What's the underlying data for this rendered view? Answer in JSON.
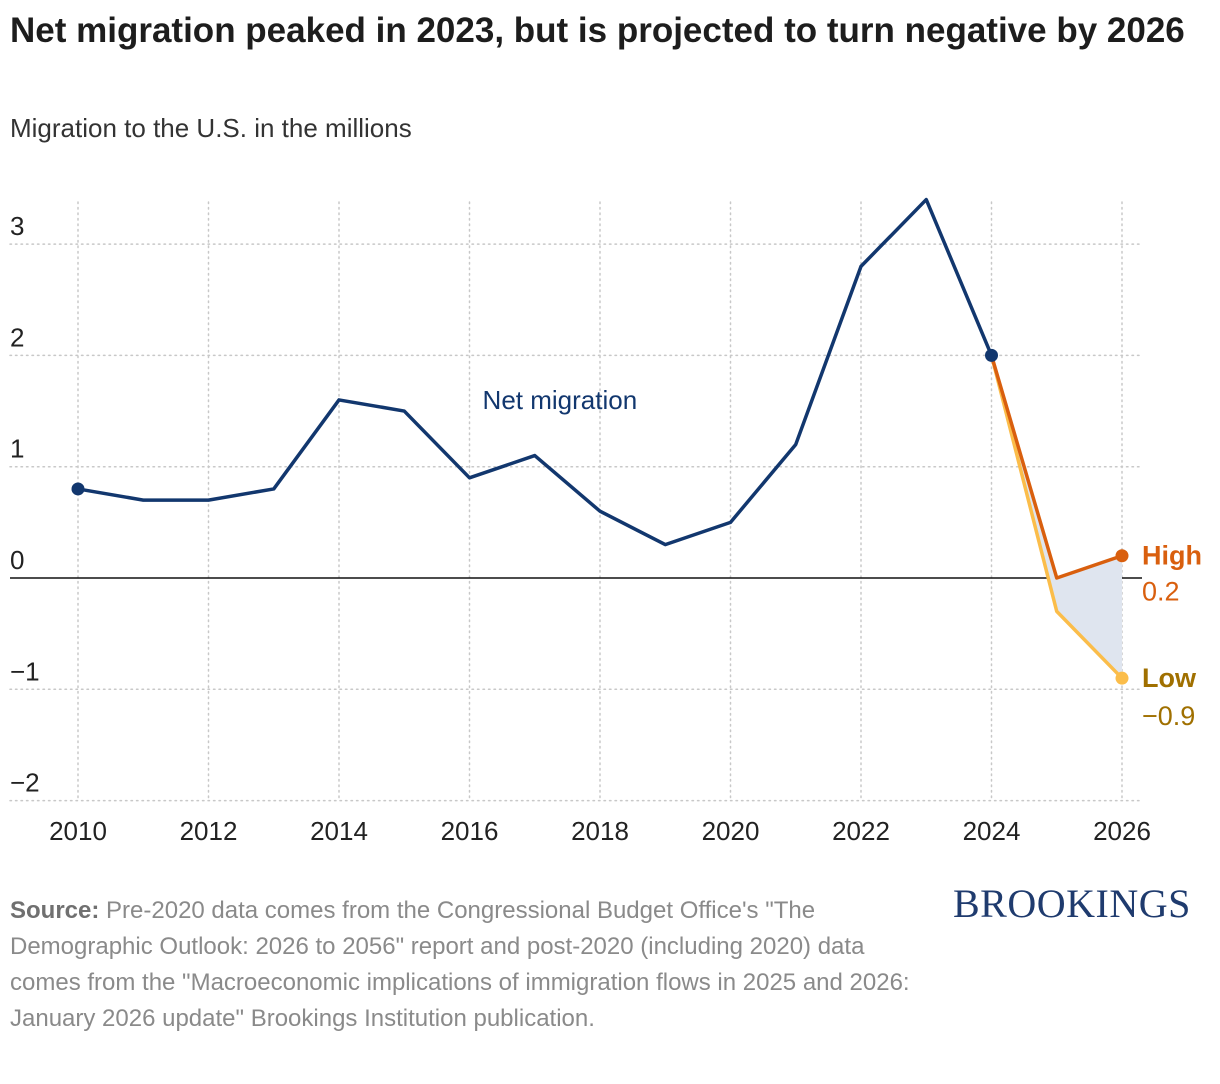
{
  "title": "Net migration peaked in 2023, but is projected to turn negative by 2026",
  "subtitle": "Migration to the U.S. in the millions",
  "source_label": "Source:",
  "source_text": "Pre-2020 data comes from the Congressional Budget Office's \"The Demographic Outlook: 2026 to 2056\" report and post-2020 (including 2020) data comes from the \"Macroeconomic implications of immigration flows in 2025 and 2026: January 2026 update\" Brookings Institution publication.",
  "logo_text": "BROOKINGS",
  "colors": {
    "net": "#12376e",
    "high": "#d95f0e",
    "low": "#fbbd4a",
    "low_label": "#a07000",
    "band": "#dfe5ef",
    "grid": "#c8c8c8",
    "zero": "#111111"
  },
  "chart_data": {
    "type": "line",
    "title": "Net migration peaked in 2023, but is projected to turn negative by 2026",
    "ylabel": "Migration to the U.S. in the millions",
    "xlim": [
      2010,
      2026
    ],
    "ylim": [
      -2,
      3.4
    ],
    "x_ticks": [
      2010,
      2012,
      2014,
      2016,
      2018,
      2020,
      2022,
      2024,
      2026
    ],
    "y_ticks": [
      3,
      2,
      1,
      0,
      -1,
      -2
    ],
    "y_tick_labels": [
      "3",
      "2",
      "1",
      "0",
      "−1",
      "−2"
    ],
    "series": [
      {
        "name": "Net migration",
        "x": [
          2010,
          2011,
          2012,
          2013,
          2014,
          2015,
          2016,
          2017,
          2018,
          2019,
          2020,
          2021,
          2022,
          2023,
          2024
        ],
        "values": [
          0.8,
          0.7,
          0.7,
          0.8,
          1.6,
          1.5,
          0.9,
          1.1,
          0.6,
          0.3,
          0.5,
          1.2,
          2.8,
          3.4,
          2.0
        ]
      },
      {
        "name": "High",
        "x": [
          2024,
          2025,
          2026
        ],
        "values": [
          2.0,
          0.0,
          0.2
        ],
        "end_label": "0.2"
      },
      {
        "name": "Low",
        "x": [
          2024,
          2025,
          2026
        ],
        "values": [
          2.0,
          -0.3,
          -0.9
        ],
        "end_label": "−0.9"
      }
    ],
    "annotations": [
      {
        "text": "Net migration",
        "x": 2016.2,
        "y": 1.6
      }
    ]
  }
}
